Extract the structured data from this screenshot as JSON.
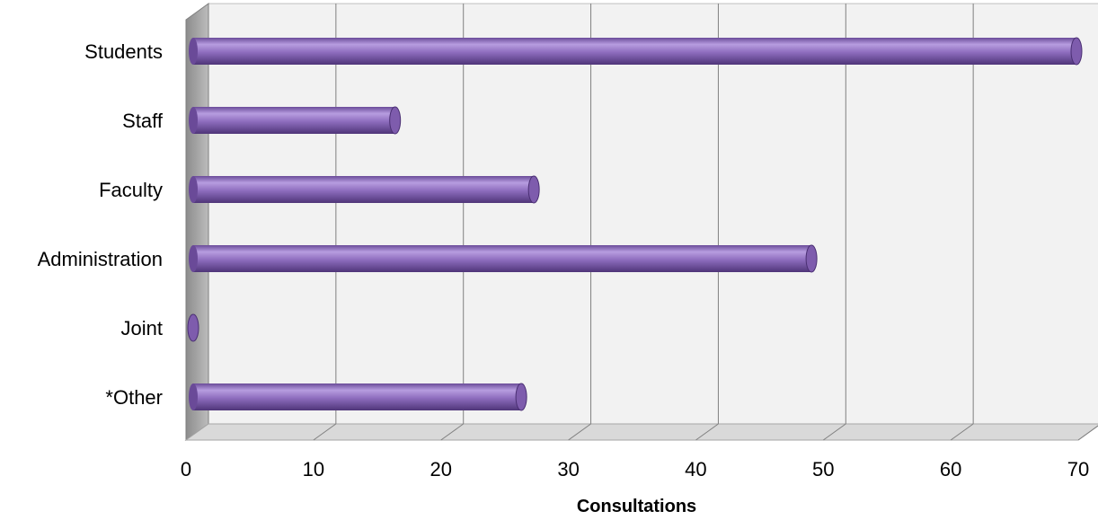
{
  "chart_data": {
    "type": "bar",
    "orientation": "horizontal",
    "title": "",
    "xlabel": "Consultations",
    "ylabel": "",
    "categories": [
      "Students",
      "Staff",
      "Faculty",
      "Administration",
      "Joint",
      "*Other"
    ],
    "values": [
      70,
      16,
      27,
      49,
      0,
      26
    ],
    "xlim": [
      0,
      70
    ],
    "xticks": [
      0,
      10,
      20,
      30,
      40,
      50,
      60,
      70
    ],
    "grid": true,
    "legend": "none",
    "style": "3d-cylinder",
    "colors": {
      "bar": "#8a67b8",
      "bar_dark": "#5a3f86",
      "bar_light": "#b69bdc",
      "wall": "#f2f2f2",
      "side_wall": "#a6a6a6",
      "floor": "#d9d9d9",
      "grid": "#808080"
    }
  }
}
